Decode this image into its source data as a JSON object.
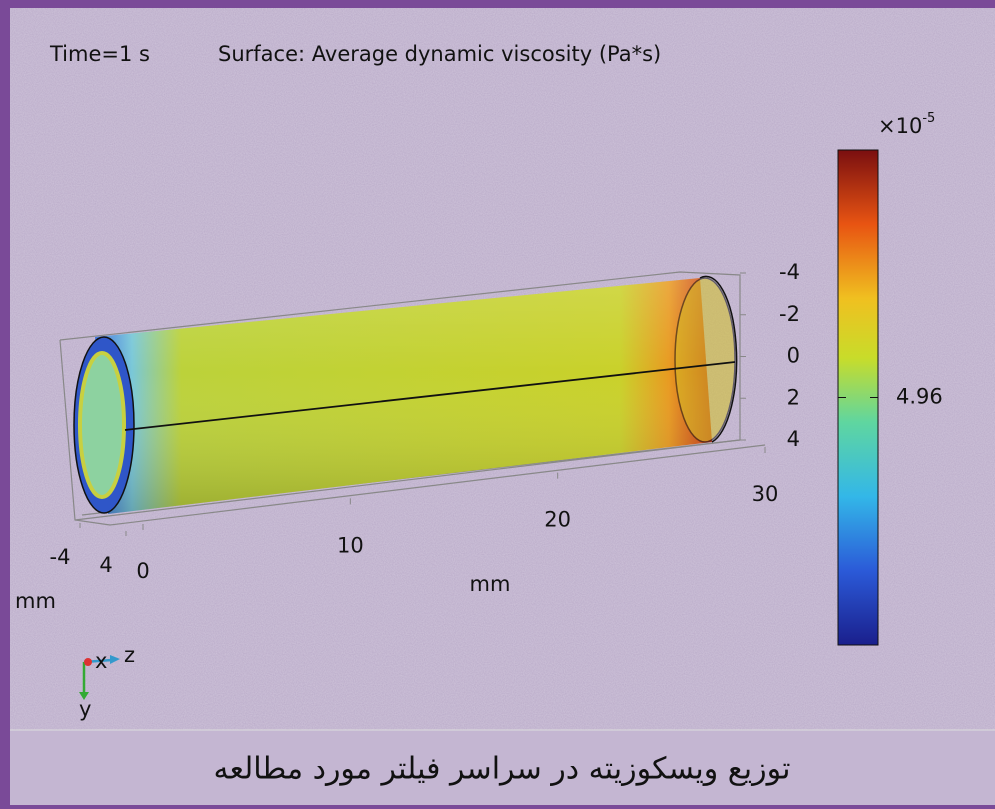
{
  "chart_data": {
    "type": "surface",
    "title": "Time=1 s",
    "subtitle": "Surface: Average dynamic viscosity (Pa*s)",
    "zticks": [
      0,
      10,
      20,
      30
    ],
    "zlabel": "mm",
    "zlim": [
      0,
      30
    ],
    "yticks": [
      -4,
      -2,
      0,
      2,
      4
    ],
    "ylim": [
      -4,
      4
    ],
    "xticks": [
      -4,
      4
    ],
    "xlabel": "mm",
    "xlim": [
      -4,
      4
    ],
    "colorbar": {
      "multiplier": "×10",
      "exponent": "-5",
      "clim": [
        4.93,
        4.99
      ],
      "ticks": [
        4.96
      ]
    },
    "triad": {
      "x": "x",
      "y": "y",
      "z": "z"
    },
    "caption": "توزیع ویسکوزیته در سراسر فیلتر مورد مطالعه"
  }
}
